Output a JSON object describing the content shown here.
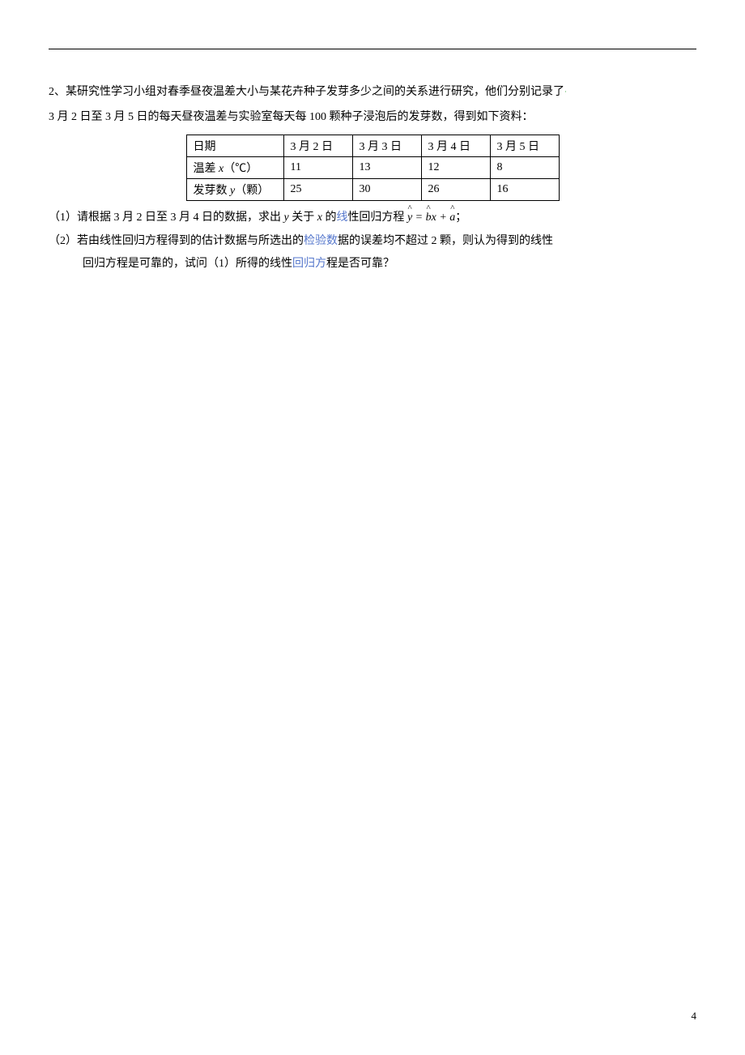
{
  "question": {
    "number": "2、",
    "line1": "某研究性学习小组对春季昼夜温差大小与某花卉种子发芽多少之间的关系进行研究，他们分别记录了",
    "line2": "3 月 2 日至 3 月 5 日的每天昼夜温差与实验室每天每 100 颗种子浸泡后的发芽数，得到如下资料："
  },
  "table": {
    "rows": [
      {
        "header": "日期",
        "cells": [
          "3 月 2 日",
          "3 月 3 日",
          "3 月 4 日",
          "3 月 5 日"
        ]
      },
      {
        "header_prefix": "温差 ",
        "header_var": "x",
        "header_suffix": "（℃）",
        "cells": [
          "11",
          "13",
          "12",
          "8"
        ]
      },
      {
        "header_prefix": "发芽数 ",
        "header_var": "y",
        "header_suffix": "（颗）",
        "cells": [
          "25",
          "30",
          "26",
          "16"
        ]
      }
    ]
  },
  "subq1": {
    "label": "（1）",
    "text_before": "请根据 3 月 2 日至 3 月 4 日的数据，求出 ",
    "var_y": "y",
    "text_mid1": " 关于 ",
    "var_x": "x",
    "text_mid2": " 的",
    "blue_part": "线",
    "text_after_blue": "性回归方程 ",
    "eq_y": "ŷ",
    "eq_eq": " = ",
    "eq_b": "b̂",
    "eq_x": "x",
    "eq_plus": " + ",
    "eq_a": "â",
    "text_end": "；"
  },
  "subq2": {
    "label": "（2）",
    "line1_before": "若由线性回归方程得到的估计数据与所选出的",
    "line1_blue1": "检验数",
    "line1_mid": "据的误差均不超过 2 颗，则认为得到的线性",
    "line2_before": "回归方程是可靠的，试问（1）所得的线性",
    "line2_blue": "回归方",
    "line2_after": "程是否可靠？"
  },
  "styling": {
    "font_size_body": 14,
    "font_size_page_num": 13,
    "text_color": "#000000",
    "blue_color": "#5577cc",
    "green_dot_color": "#008800",
    "background_color": "#ffffff",
    "border_color": "#000000",
    "line_height": 1.9,
    "table_header_width": 120,
    "table_data_width": 85
  },
  "page_number": "4"
}
